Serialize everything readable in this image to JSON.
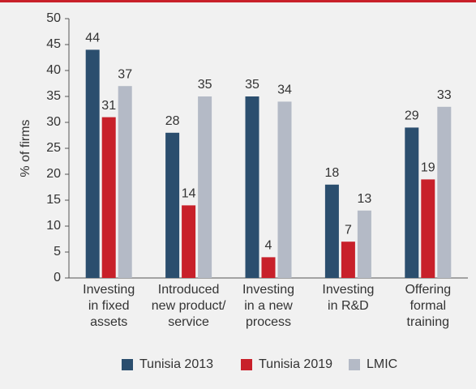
{
  "chart_data": {
    "type": "bar",
    "categories": [
      [
        "Investing",
        "in fixed",
        "assets"
      ],
      [
        "Introduced",
        "new product/",
        "service"
      ],
      [
        "Investing",
        "in a new",
        "process"
      ],
      [
        "Investing",
        "in R&D"
      ],
      [
        "Offering",
        "formal",
        "training"
      ]
    ],
    "series": [
      {
        "name": "Tunisia 2013",
        "color": "#2b4e6e",
        "values": [
          44,
          28,
          35,
          18,
          29
        ]
      },
      {
        "name": "Tunisia 2019",
        "color": "#c8202a",
        "values": [
          31,
          14,
          4,
          7,
          19
        ]
      },
      {
        "name": "LMIC",
        "color": "#b4bac6",
        "values": [
          37,
          35,
          34,
          13,
          33
        ]
      }
    ],
    "ylabel": "% of firms",
    "ylim": [
      0,
      50
    ],
    "yticks": [
      0,
      5,
      10,
      15,
      20,
      25,
      30,
      35,
      40,
      45,
      50
    ],
    "legend": "bottom"
  }
}
